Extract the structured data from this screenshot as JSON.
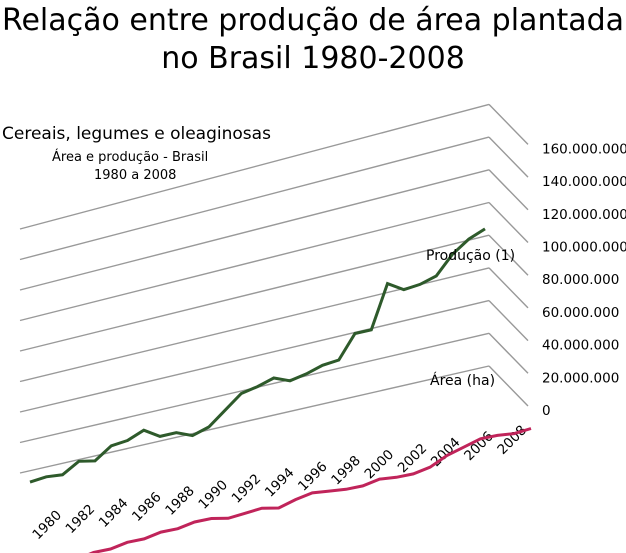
{
  "titles": {
    "line1": "Relação entre produção de área plantada",
    "line2": "no Brasil 1980-2008",
    "subtitle1": "Cereais, legumes e oleaginosas",
    "subtitle2": "Área e produção - Brasil",
    "subtitle3": "1980 a 2008"
  },
  "chart_data": {
    "type": "line",
    "x": [
      1980,
      1981,
      1982,
      1983,
      1984,
      1985,
      1986,
      1987,
      1988,
      1989,
      1990,
      1991,
      1992,
      1993,
      1994,
      1995,
      1996,
      1997,
      1998,
      1999,
      2000,
      2001,
      2002,
      2003,
      2004,
      2005,
      2006,
      2007,
      2008
    ],
    "x_tick_labels": [
      "1980",
      "1982",
      "1984",
      "1986",
      "1988",
      "1990",
      "1992",
      "1994",
      "1996",
      "1998",
      "2000",
      "2002",
      "2004",
      "2006",
      "2008"
    ],
    "y_tick_labels": [
      "0",
      "20.000.000",
      "40.000.000",
      "60.000.000",
      "80.000.000",
      "100.000.000",
      "120.000.000",
      "140.000.000",
      "160.000.000"
    ],
    "ylim": [
      0,
      160000000
    ],
    "grid": true,
    "colors": {
      "production": "#2e5a2b",
      "area": "#c0245a",
      "grid": "#999999"
    },
    "series": [
      {
        "name": "Produção (1)",
        "values": [
          51000000,
          52000000,
          51000000,
          57000000,
          55000000,
          62000000,
          63000000,
          67000000,
          61000000,
          61000000,
          57000000,
          60000000,
          68000000,
          76000000,
          78000000,
          81000000,
          77000000,
          79000000,
          82000000,
          83000000,
          97000000,
          97000000,
          123000000,
          117000000,
          118000000,
          121000000,
          132000000,
          139000000,
          143000000
        ]
      },
      {
        "name": "Área (ha)",
        "values": [
          36000000,
          36000000,
          38000000,
          38000000,
          40000000,
          40000000,
          42000000,
          42000000,
          44000000,
          44000000,
          42000000,
          43000000,
          44000000,
          42000000,
          45000000,
          47000000,
          46000000,
          45000000,
          45000000,
          47000000,
          46000000,
          46000000,
          48000000,
          53000000,
          56000000,
          59000000,
          59000000,
          58000000,
          59000000
        ]
      }
    ]
  }
}
